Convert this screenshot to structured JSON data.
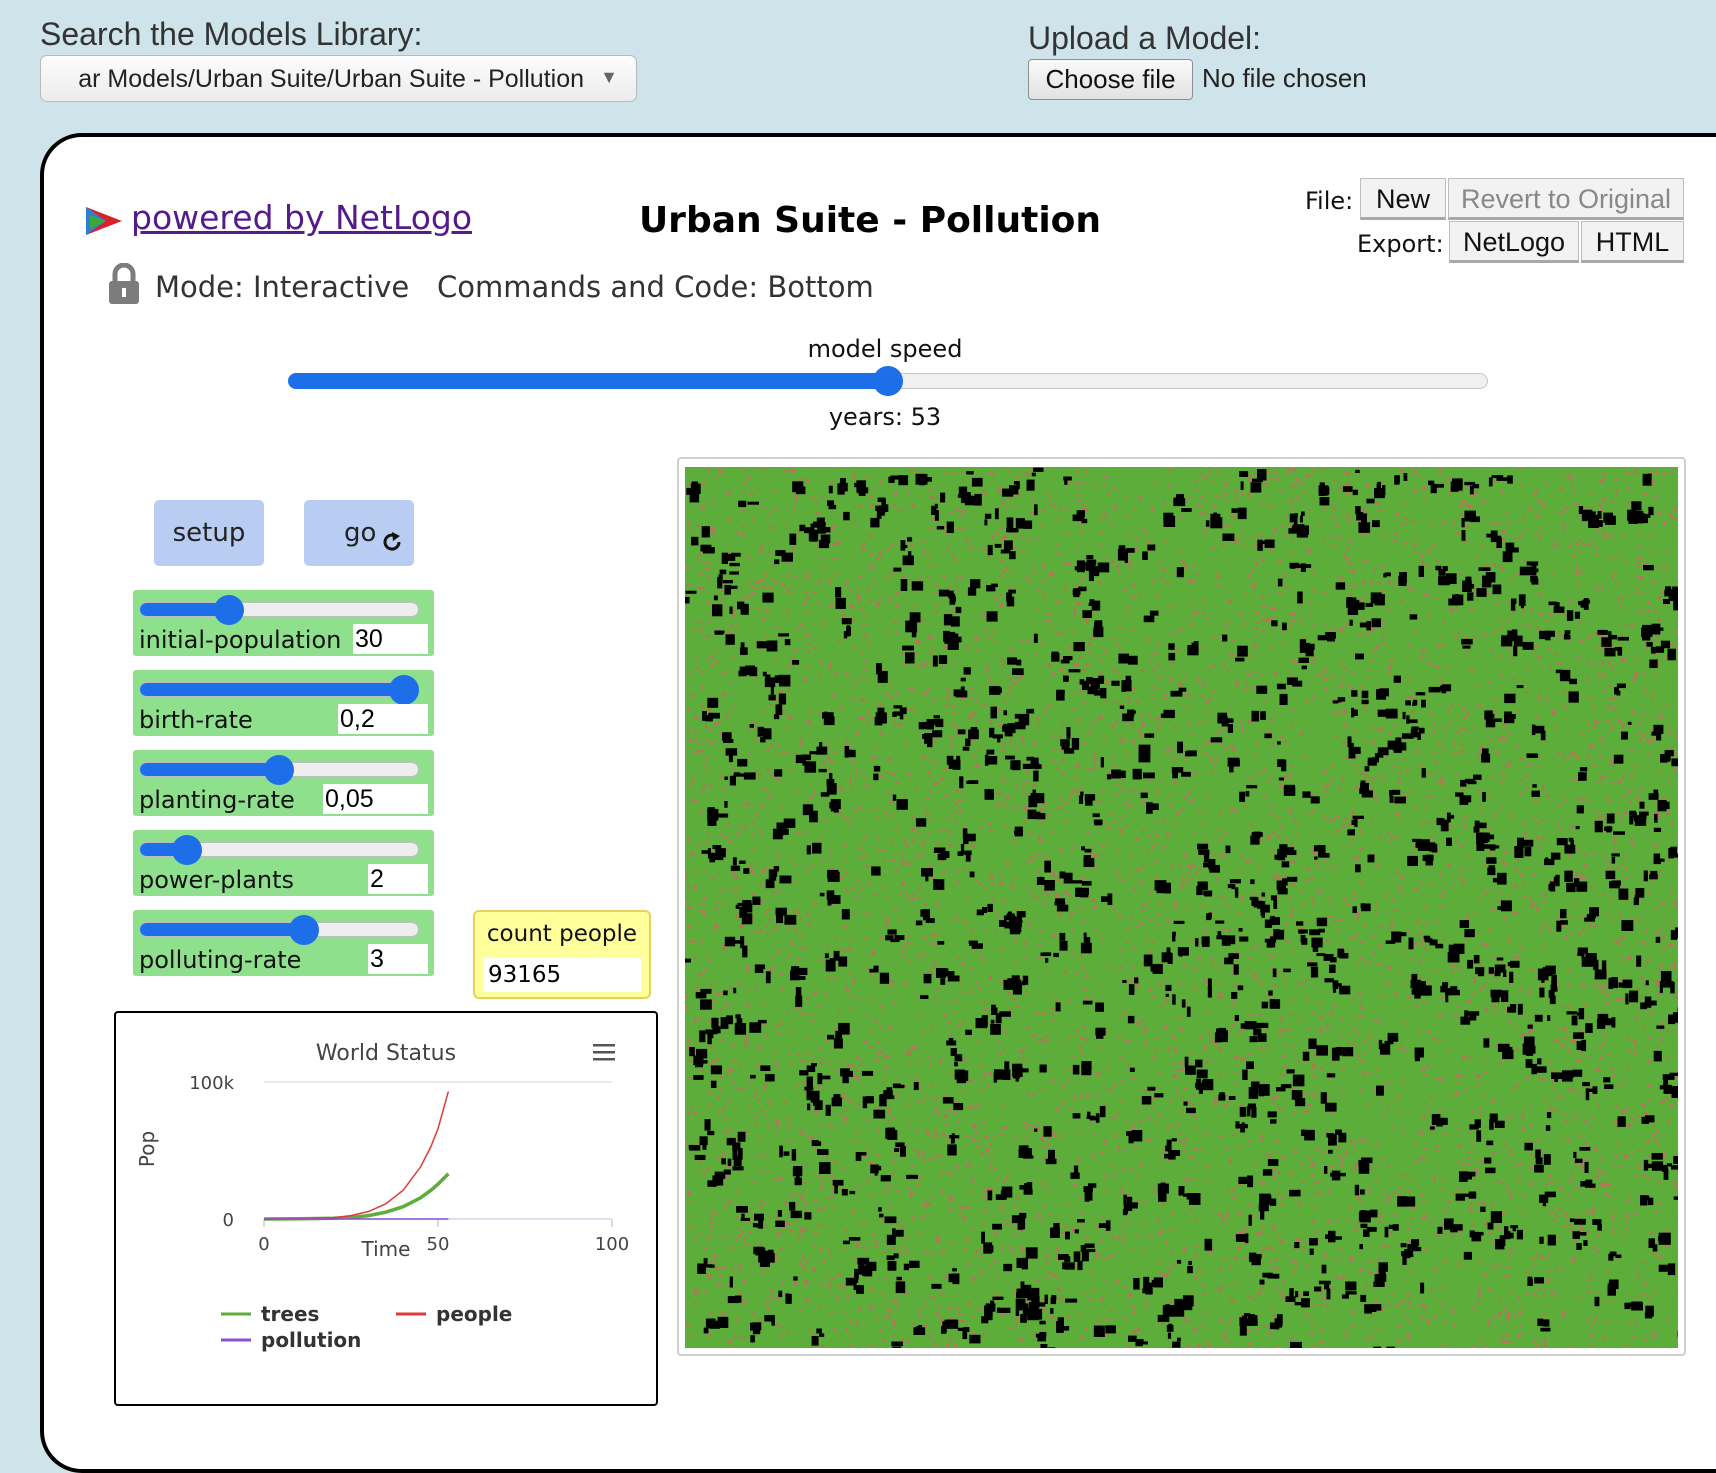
{
  "top_bar": {
    "search_label": "Search the Models Library:",
    "selected_model": "ar Models/Urban Suite/Urban Suite - Pollution",
    "dropdown_arrow": "▼",
    "upload_label": "Upload a Model:",
    "choose_file_label": "Choose file",
    "no_file_text": "No file chosen"
  },
  "header": {
    "powered_by": "powered by NetLogo",
    "model_title": "Urban Suite - Pollution",
    "file_label": "File:",
    "new_label": "New",
    "revert_label": "Revert to Original",
    "export_label": "Export:",
    "export_netlogo_label": "NetLogo",
    "export_html_label": "HTML",
    "mode_text": "Mode: Interactive",
    "commands_text": "Commands and Code: Bottom"
  },
  "speed": {
    "label": "model speed",
    "fraction": 0.5,
    "ticks_text": "years: 53"
  },
  "buttons": {
    "setup_label": "setup",
    "go_label": "go",
    "go_icon": "forever-icon"
  },
  "sliders": [
    {
      "name": "initial-population",
      "value": "30",
      "fraction": 0.3
    },
    {
      "name": "birth-rate",
      "value": "0,2",
      "fraction": 1.0
    },
    {
      "name": "planting-rate",
      "value": "0,05",
      "fraction": 0.5
    },
    {
      "name": "power-plants",
      "value": "2",
      "fraction": 0.13
    },
    {
      "name": "polluting-rate",
      "value": "3",
      "fraction": 0.6
    }
  ],
  "monitor": {
    "name": "count people",
    "value": "93165"
  },
  "colors": {
    "accent": "#1d6fe9",
    "button_bg": "#b9cdf2",
    "slider_bg": "#8fe08d",
    "monitor_bg": "#ffff9c",
    "patch_green": "#5cad3a",
    "people_dots": "#c56a5f"
  },
  "chart_data": {
    "type": "line",
    "title": "World Status",
    "menu_icon": "hamburger-menu-icon",
    "xlabel": "Time",
    "ylabel": "Pop",
    "xlim": [
      0,
      100
    ],
    "ylim": [
      0,
      100000
    ],
    "xticks": [
      "0",
      "50",
      "100"
    ],
    "yticks": [
      "0",
      "100k"
    ],
    "legend_position": "bottom",
    "series": [
      {
        "name": "trees",
        "color": "#5cad3a",
        "x": [
          0,
          10,
          20,
          25,
          30,
          35,
          40,
          45,
          48,
          50,
          53
        ],
        "y": [
          30,
          120,
          500,
          1100,
          2500,
          5000,
          9000,
          15500,
          21000,
          25500,
          33000
        ]
      },
      {
        "name": "people",
        "color": "#e03a3a",
        "x": [
          0,
          10,
          20,
          25,
          30,
          35,
          40,
          45,
          48,
          50,
          53
        ],
        "y": [
          30,
          200,
          1000,
          2500,
          5500,
          11000,
          21000,
          38000,
          53000,
          66000,
          93165
        ]
      },
      {
        "name": "pollution",
        "color": "#8e4fd4",
        "x": [
          0,
          10,
          20,
          30,
          40,
          50,
          53
        ],
        "y": [
          0,
          0,
          0,
          0,
          0,
          0,
          0
        ]
      }
    ]
  }
}
